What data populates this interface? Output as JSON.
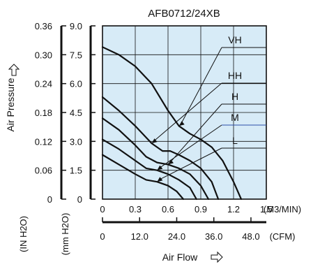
{
  "chart_data": {
    "type": "line",
    "title": "AFB0712/24XB",
    "xlabel": "Air Flow",
    "x_unit_primary": "(M3/MIN)",
    "x_unit_secondary": "(CFM)",
    "ylabel": "Air Pressure",
    "y_unit_left": "(IN H2O)",
    "y_unit_right": "(mm H2O)",
    "xlim": [
      0,
      1.5
    ],
    "ylim": [
      0,
      9.0
    ],
    "grid": true,
    "x_ticks_m3min": [
      "0",
      "0.3",
      "0.6",
      "0.9",
      "1.2",
      "1.5"
    ],
    "x_ticks_cfm": [
      "0",
      "12.0",
      "24.0",
      "36.0",
      "48.0"
    ],
    "y_ticks_mmh2o": [
      "0",
      "1.5",
      "3.0",
      "4.5",
      "6.0",
      "7.5",
      "9.0"
    ],
    "y_ticks_inh2o": [
      "0",
      "0.06",
      "0.12",
      "0.18",
      "0.24",
      "0.30",
      "0.36"
    ],
    "series": [
      {
        "name": "VH",
        "x": [
          0,
          0.15,
          0.3,
          0.45,
          0.6,
          0.7,
          0.8,
          0.9,
          1.0,
          1.1,
          1.2,
          1.27
        ],
        "y": [
          7.9,
          7.5,
          6.9,
          6.0,
          4.6,
          3.8,
          3.4,
          3.1,
          2.7,
          2.0,
          0.9,
          0
        ]
      },
      {
        "name": "HH",
        "x": [
          0,
          0.15,
          0.3,
          0.45,
          0.55,
          0.62,
          0.7,
          0.8,
          0.9,
          1.0,
          1.06
        ],
        "y": [
          5.3,
          4.6,
          3.8,
          2.9,
          2.5,
          2.5,
          2.3,
          2.0,
          1.6,
          0.9,
          0
        ]
      },
      {
        "name": "H",
        "x": [
          0,
          0.15,
          0.3,
          0.4,
          0.5,
          0.6,
          0.7,
          0.8,
          0.9,
          0.97
        ],
        "y": [
          4.2,
          3.6,
          2.8,
          2.2,
          1.9,
          1.8,
          1.6,
          1.3,
          0.7,
          0
        ]
      },
      {
        "name": "M",
        "x": [
          0,
          0.15,
          0.3,
          0.4,
          0.5,
          0.6,
          0.7,
          0.8,
          0.86
        ],
        "y": [
          3.1,
          2.6,
          2.0,
          1.6,
          1.5,
          1.3,
          1.0,
          0.6,
          0
        ]
      },
      {
        "name": "L",
        "x": [
          0,
          0.15,
          0.3,
          0.4,
          0.5,
          0.6,
          0.68,
          0.74
        ],
        "y": [
          2.3,
          1.8,
          1.3,
          1.0,
          0.9,
          0.7,
          0.4,
          0
        ]
      }
    ],
    "series_label_colors": {
      "M": "#2b4fa8"
    }
  }
}
